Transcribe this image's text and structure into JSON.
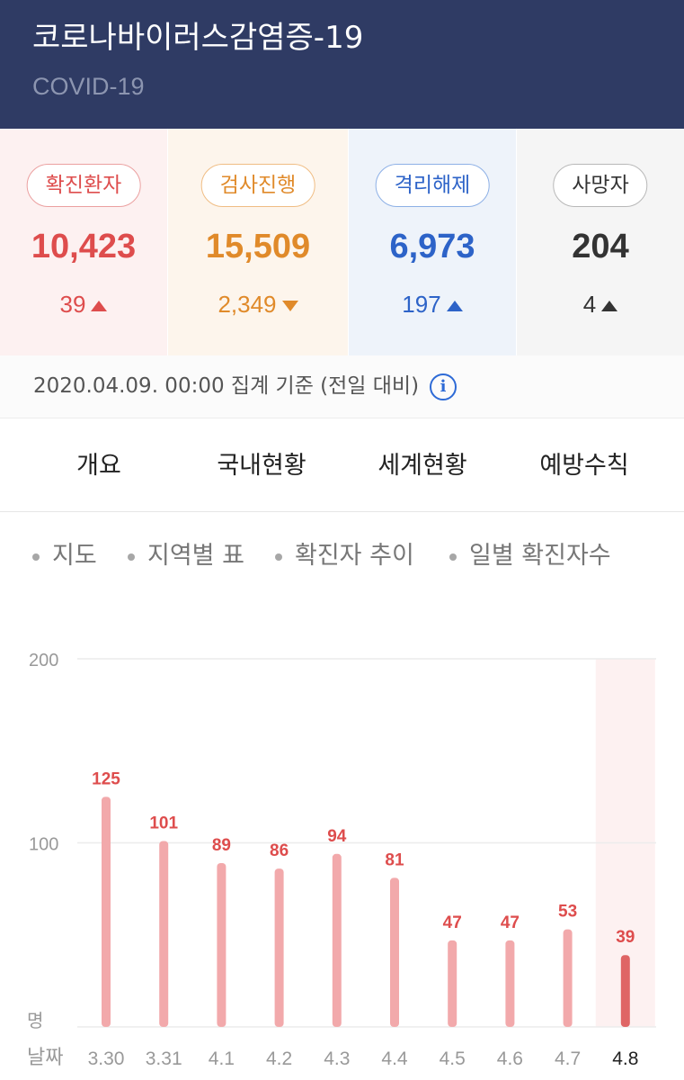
{
  "header": {
    "title": "코로나바이러스감염증-19",
    "subtitle": "COVID-19"
  },
  "stats": [
    {
      "label": "확진환자",
      "value": "10,423",
      "delta": "39",
      "direction": "up",
      "color": "#de4d4d",
      "bg": "#fdf1f1",
      "border": "#eba0a0"
    },
    {
      "label": "검사진행",
      "value": "15,509",
      "delta": "2,349",
      "direction": "down",
      "color": "#e08a2a",
      "bg": "#fdf5ec",
      "border": "#f0bd84"
    },
    {
      "label": "격리해제",
      "value": "6,973",
      "delta": "197",
      "direction": "up",
      "color": "#2d63c8",
      "bg": "#eef3fa",
      "border": "#8db0e6"
    },
    {
      "label": "사망자",
      "value": "204",
      "delta": "4",
      "direction": "up",
      "color": "#333333",
      "bg": "#f5f5f5",
      "border": "#b8b8b8"
    }
  ],
  "basis": {
    "text": "2020.04.09. 00:00 집계 기준 (전일 대비)",
    "icon": "info-icon"
  },
  "tabs": [
    {
      "label": "개요",
      "active": false
    },
    {
      "label": "국내현황",
      "active": true
    },
    {
      "label": "세계현황",
      "active": false
    },
    {
      "label": "예방수칙",
      "active": false
    }
  ],
  "subtabs": [
    {
      "label": "지도",
      "active": false
    },
    {
      "label": "지역별 표",
      "active": false
    },
    {
      "label": "확진자 추이",
      "active": false
    },
    {
      "label": "일별 확진자수",
      "active": true
    }
  ],
  "chart_data": {
    "type": "bar",
    "categories": [
      "3.30",
      "3.31",
      "4.1",
      "4.2",
      "4.3",
      "4.4",
      "4.5",
      "4.6",
      "4.7",
      "4.8"
    ],
    "values": [
      125,
      101,
      89,
      86,
      94,
      81,
      47,
      47,
      53,
      39
    ],
    "ylim": [
      0,
      200
    ],
    "yticks": [
      "200",
      "100"
    ],
    "ylabel": "명",
    "xlabel": "날짜",
    "highlight_index": 9,
    "grid": true,
    "colors": {
      "bar": "#f2a9ab",
      "bar_highlight": "#df6565",
      "label": "#de4d4d",
      "highlight_bg": "#fdf1f1",
      "grid": "#ececec"
    }
  }
}
